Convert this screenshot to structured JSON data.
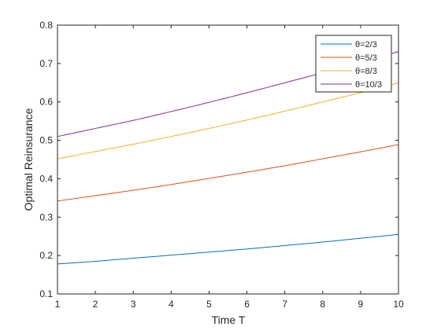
{
  "chart_data": {
    "type": "line",
    "title": "",
    "xlabel": "Time T",
    "ylabel": "Optimal Reinsurance",
    "xlim": [
      1,
      10
    ],
    "ylim": [
      0.1,
      0.8
    ],
    "xticks": [
      "1",
      "2",
      "3",
      "4",
      "5",
      "6",
      "7",
      "8",
      "9",
      "10"
    ],
    "yticks": [
      "0.1",
      "0.2",
      "0.3",
      "0.4",
      "0.5",
      "0.6",
      "0.7",
      "0.8"
    ],
    "grid": false,
    "legend_position": "top-right",
    "x": [
      1,
      2,
      3,
      4,
      5,
      6,
      7,
      8,
      9,
      10
    ],
    "series": [
      {
        "name": "θ=2/3",
        "color": "#0072BD",
        "values": [
          0.178,
          0.185,
          0.193,
          0.201,
          0.209,
          0.217,
          0.226,
          0.235,
          0.245,
          0.255
        ]
      },
      {
        "name": "θ=5/3",
        "color": "#D95319",
        "values": [
          0.342,
          0.356,
          0.37,
          0.385,
          0.401,
          0.417,
          0.434,
          0.452,
          0.47,
          0.489
        ]
      },
      {
        "name": "θ=8/3",
        "color": "#EDB120",
        "values": [
          0.452,
          0.471,
          0.49,
          0.51,
          0.531,
          0.553,
          0.576,
          0.6,
          0.624,
          0.65
        ]
      },
      {
        "name": "θ=10/3",
        "color": "#7E2F8E",
        "values": [
          0.51,
          0.531,
          0.552,
          0.575,
          0.599,
          0.624,
          0.65,
          0.676,
          0.703,
          0.731
        ]
      }
    ]
  }
}
